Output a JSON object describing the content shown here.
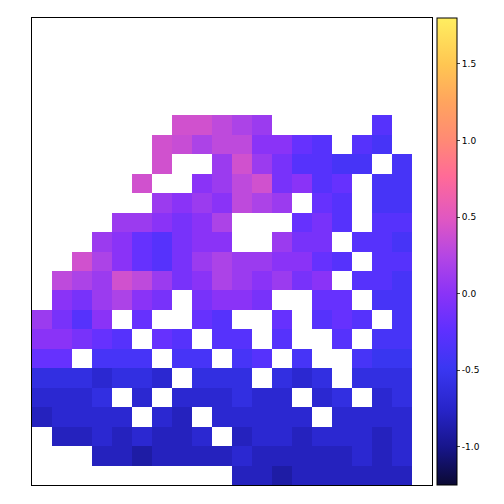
{
  "chart_data": {
    "type": "heatmap",
    "cells": [
      [
        null,
        null,
        null,
        null,
        null,
        null,
        null,
        null,
        null,
        null,
        null,
        null,
        null,
        null,
        null,
        null,
        null,
        null,
        null,
        null
      ],
      [
        null,
        null,
        null,
        null,
        null,
        null,
        null,
        null,
        null,
        null,
        null,
        null,
        null,
        null,
        null,
        null,
        null,
        null,
        null,
        null
      ],
      [
        null,
        null,
        null,
        null,
        null,
        null,
        null,
        null,
        null,
        null,
        null,
        null,
        null,
        null,
        null,
        null,
        null,
        null,
        null,
        null
      ],
      [
        null,
        null,
        null,
        null,
        null,
        null,
        null,
        null,
        null,
        null,
        null,
        null,
        null,
        null,
        null,
        null,
        null,
        null,
        null,
        null
      ],
      [
        null,
        null,
        null,
        null,
        null,
        null,
        null,
        null,
        null,
        null,
        null,
        null,
        null,
        null,
        null,
        null,
        null,
        null,
        null,
        null
      ],
      [
        null,
        null,
        null,
        null,
        null,
        null,
        null,
        0.4,
        0.4,
        0.3,
        0.2,
        0.1,
        null,
        null,
        null,
        null,
        null,
        -0.3,
        null,
        null
      ],
      [
        null,
        null,
        null,
        null,
        null,
        null,
        0.4,
        0.35,
        0.2,
        0.3,
        0.3,
        0,
        0,
        -0.2,
        -0.3,
        null,
        -0.3,
        -0.4,
        null,
        null
      ],
      [
        null,
        null,
        null,
        null,
        null,
        null,
        0.4,
        null,
        null,
        0.1,
        0.4,
        0.1,
        -0.1,
        -0.3,
        -0.3,
        -0.4,
        -0.4,
        null,
        -0.4,
        null
      ],
      [
        null,
        null,
        null,
        null,
        null,
        0.4,
        null,
        null,
        0,
        0.1,
        0.3,
        0.4,
        -0.1,
        0,
        -0.3,
        -0.2,
        null,
        -0.4,
        -0.4,
        null
      ],
      [
        null,
        null,
        null,
        null,
        null,
        null,
        0.1,
        0,
        0.1,
        0,
        0.3,
        0.2,
        0.1,
        null,
        -0.2,
        -0.3,
        null,
        -0.4,
        -0.4,
        null
      ],
      [
        null,
        null,
        null,
        null,
        0.1,
        0.1,
        0,
        -0.1,
        0,
        0.2,
        null,
        null,
        null,
        -0.2,
        -0.1,
        -0.3,
        null,
        -0.3,
        -0.3,
        null
      ],
      [
        null,
        null,
        null,
        0.1,
        0,
        -0.2,
        -0.3,
        -0.1,
        0,
        0,
        null,
        null,
        0.1,
        -0.1,
        -0.1,
        null,
        -0.3,
        -0.3,
        -0.4,
        null
      ],
      [
        null,
        null,
        0.4,
        0.2,
        0,
        -0.2,
        -0.3,
        -0.1,
        0.1,
        0.2,
        0.1,
        0.1,
        0,
        0,
        -0.2,
        -0.3,
        null,
        -0.3,
        -0.3,
        null
      ],
      [
        null,
        0.3,
        0.2,
        0.1,
        0.4,
        0.3,
        0.1,
        -0.1,
        0,
        0.2,
        0.1,
        0,
        0.1,
        -0.1,
        0,
        null,
        -0.3,
        -0.3,
        -0.4,
        null
      ],
      [
        null,
        0,
        -0.1,
        0.1,
        0.2,
        0,
        -0.1,
        null,
        -0.1,
        0,
        0,
        -0.1,
        null,
        null,
        -0.2,
        -0.2,
        null,
        -0.4,
        -0.4,
        null
      ],
      [
        0.1,
        -0.1,
        -0.3,
        0,
        null,
        -0.2,
        null,
        null,
        -0.2,
        -0.3,
        null,
        null,
        -0.2,
        null,
        -0.3,
        -0.2,
        -0.3,
        null,
        -0.4,
        null
      ],
      [
        0,
        0,
        -0.1,
        -0.2,
        -0.3,
        null,
        -0.2,
        -0.3,
        null,
        -0.3,
        -0.3,
        null,
        -0.3,
        null,
        null,
        -0.3,
        null,
        -0.4,
        -0.4,
        null
      ],
      [
        -0.2,
        -0.2,
        null,
        -0.4,
        -0.4,
        -0.4,
        null,
        -0.4,
        -0.4,
        null,
        -0.4,
        -0.3,
        null,
        -0.4,
        null,
        null,
        -0.4,
        -0.5,
        -0.5,
        null
      ],
      [
        -0.6,
        -0.6,
        -0.6,
        -0.7,
        -0.6,
        -0.6,
        -0.7,
        null,
        -0.6,
        -0.6,
        -0.6,
        null,
        -0.6,
        -0.7,
        -0.6,
        null,
        -0.6,
        -0.6,
        -0.6,
        null
      ],
      [
        -0.7,
        -0.7,
        -0.7,
        -0.6,
        null,
        -0.7,
        null,
        -0.7,
        -0.7,
        -0.7,
        -0.6,
        -0.7,
        -0.7,
        null,
        -0.7,
        -0.6,
        null,
        -0.7,
        -0.6,
        null
      ],
      [
        -0.8,
        -0.7,
        -0.7,
        -0.7,
        -0.7,
        null,
        -0.7,
        -0.8,
        null,
        -0.7,
        -0.7,
        -0.7,
        -0.7,
        -0.7,
        null,
        -0.7,
        -0.7,
        -0.7,
        -0.7,
        null
      ],
      [
        null,
        -0.8,
        -0.8,
        -0.7,
        -0.8,
        -0.7,
        -0.8,
        -0.8,
        -0.7,
        null,
        -0.8,
        -0.7,
        -0.7,
        -0.8,
        -0.7,
        -0.7,
        -0.7,
        -0.8,
        -0.7,
        null
      ],
      [
        null,
        null,
        null,
        -0.8,
        -0.8,
        -0.9,
        -0.8,
        -0.8,
        -0.8,
        -0.8,
        -0.7,
        -0.8,
        -0.8,
        -0.8,
        -0.8,
        -0.8,
        -0.7,
        -0.8,
        -0.7,
        null
      ],
      [
        null,
        null,
        null,
        null,
        null,
        null,
        null,
        null,
        null,
        null,
        -0.8,
        -0.8,
        -0.9,
        -0.8,
        -0.8,
        -0.8,
        -0.8,
        -0.8,
        -0.8,
        null
      ]
    ],
    "zlim": [
      -1.25,
      1.8
    ],
    "zticks": [
      {
        "value": -1,
        "label": "-1.0"
      },
      -0.5,
      {
        "value": 0,
        "label": "0.0"
      },
      0.5,
      {
        "value": 1,
        "label": "1.0"
      },
      1.5
    ],
    "tick_labels": false,
    "grid": false
  }
}
